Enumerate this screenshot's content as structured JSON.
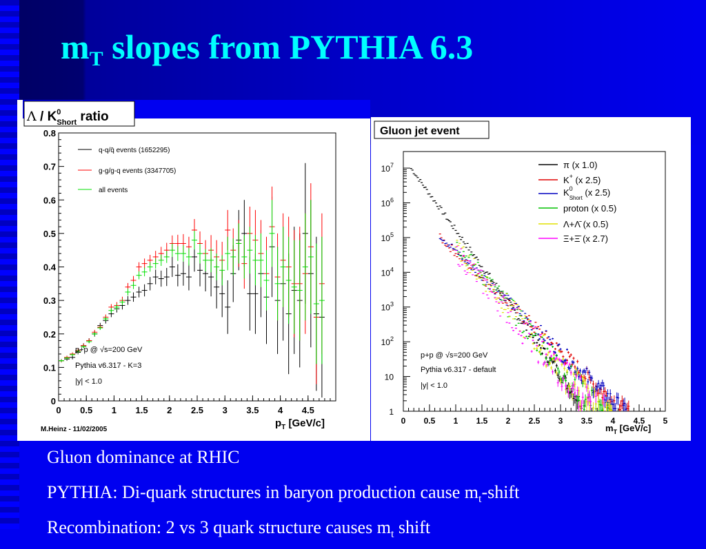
{
  "slide": {
    "title_m": "m",
    "title_sub": "T",
    "title_rest": " slopes from PYTHIA 6.3",
    "bullets": [
      {
        "pre": "Gluon dominance at RHIC",
        "sub": "",
        "post": ""
      },
      {
        "pre": "PYTHIA: Di-quark structures in baryon production cause m",
        "sub": "t",
        "post": "-shift"
      },
      {
        "pre": "Recombination: 2 vs 3 quark structure causes m",
        "sub": "t",
        "post": " shift"
      }
    ],
    "colors": {
      "title": "#00ffff",
      "background": "#0000f0",
      "text": "#ffffff"
    }
  },
  "chart_data": [
    {
      "type": "scatter",
      "title": "Λ / K0Short ratio",
      "title_parts": {
        "lambda": "Λ",
        "slash": " / K",
        "sup": "0",
        "sub": "Short",
        "ratio": " ratio"
      },
      "xlabel_main": "p",
      "xlabel_sub": "T",
      "xlabel_unit": " [GeV/c]",
      "xlim": [
        0,
        5
      ],
      "ylim": [
        0,
        0.8
      ],
      "xticks": [
        "0",
        "0.5",
        "1",
        "1.5",
        "2",
        "2.5",
        "3",
        "3.5",
        "4",
        "4.5"
      ],
      "yticks": [
        "0",
        "0.1",
        "0.2",
        "0.3",
        "0.4",
        "0.5",
        "0.6",
        "0.7",
        "0.8"
      ],
      "legend": [
        "q-q/q̄ events (1652295)",
        "g-g/g-q events (3347705)",
        "all events"
      ],
      "annotations": [
        "p+p @ √s=200 GeV",
        "Pythia v6.317 - K=3",
        "|y| < 1.0"
      ],
      "footer": "M.Heinz - 11/02/2005",
      "series": [
        {
          "name": "q-q/q̄ events (1652295)",
          "color": "#000000",
          "points": [
            [
              0.05,
              0.12,
              0.005
            ],
            [
              0.15,
              0.125,
              0.005
            ],
            [
              0.25,
              0.13,
              0.006
            ],
            [
              0.35,
              0.145,
              0.006
            ],
            [
              0.45,
              0.165,
              0.007
            ],
            [
              0.55,
              0.18,
              0.007
            ],
            [
              0.65,
              0.2,
              0.008
            ],
            [
              0.75,
              0.225,
              0.008
            ],
            [
              0.85,
              0.24,
              0.009
            ],
            [
              0.95,
              0.26,
              0.01
            ],
            [
              1.05,
              0.275,
              0.011
            ],
            [
              1.15,
              0.285,
              0.012
            ],
            [
              1.25,
              0.3,
              0.013
            ],
            [
              1.35,
              0.31,
              0.014
            ],
            [
              1.45,
              0.325,
              0.016
            ],
            [
              1.55,
              0.33,
              0.018
            ],
            [
              1.65,
              0.35,
              0.02
            ],
            [
              1.75,
              0.37,
              0.022
            ],
            [
              1.85,
              0.365,
              0.024
            ],
            [
              1.95,
              0.37,
              0.027
            ],
            [
              2.05,
              0.4,
              0.03
            ],
            [
              2.15,
              0.375,
              0.033
            ],
            [
              2.25,
              0.38,
              0.036
            ],
            [
              2.35,
              0.37,
              0.04
            ],
            [
              2.45,
              0.43,
              0.044
            ],
            [
              2.55,
              0.39,
              0.048
            ],
            [
              2.65,
              0.38,
              0.053
            ],
            [
              2.75,
              0.37,
              0.058
            ],
            [
              2.85,
              0.34,
              0.064
            ],
            [
              2.95,
              0.32,
              0.07
            ],
            [
              3.05,
              0.28,
              0.08
            ],
            [
              3.15,
              0.38,
              0.085
            ],
            [
              3.25,
              0.48,
              0.09
            ],
            [
              3.35,
              0.5,
              0.1
            ],
            [
              3.45,
              0.32,
              0.11
            ],
            [
              3.55,
              0.32,
              0.12
            ],
            [
              3.65,
              0.38,
              0.13
            ],
            [
              3.75,
              0.31,
              0.14
            ],
            [
              3.85,
              0.46,
              0.15
            ],
            [
              3.95,
              0.3,
              0.16
            ],
            [
              4.05,
              0.35,
              0.17
            ],
            [
              4.15,
              0.26,
              0.18
            ],
            [
              4.25,
              0.33,
              0.19
            ],
            [
              4.35,
              0.3,
              0.2
            ],
            [
              4.45,
              0.5,
              0.21
            ],
            [
              4.55,
              0.38,
              0.22
            ],
            [
              4.65,
              0.26,
              0.23
            ],
            [
              4.75,
              0.25,
              0.24
            ]
          ]
        },
        {
          "name": "g-g/g-q events (3347705)",
          "color": "#ff0000",
          "points": [
            [
              0.05,
              0.12,
              0.005
            ],
            [
              0.15,
              0.13,
              0.005
            ],
            [
              0.25,
              0.14,
              0.005
            ],
            [
              0.35,
              0.15,
              0.006
            ],
            [
              0.45,
              0.165,
              0.006
            ],
            [
              0.55,
              0.18,
              0.006
            ],
            [
              0.65,
              0.205,
              0.007
            ],
            [
              0.75,
              0.22,
              0.007
            ],
            [
              0.85,
              0.25,
              0.008
            ],
            [
              0.95,
              0.28,
              0.009
            ],
            [
              1.05,
              0.285,
              0.01
            ],
            [
              1.15,
              0.3,
              0.011
            ],
            [
              1.25,
              0.34,
              0.012
            ],
            [
              1.35,
              0.36,
              0.013
            ],
            [
              1.45,
              0.4,
              0.014
            ],
            [
              1.55,
              0.41,
              0.015
            ],
            [
              1.65,
              0.42,
              0.016
            ],
            [
              1.75,
              0.43,
              0.018
            ],
            [
              1.85,
              0.44,
              0.02
            ],
            [
              1.95,
              0.45,
              0.022
            ],
            [
              2.05,
              0.47,
              0.024
            ],
            [
              2.15,
              0.47,
              0.026
            ],
            [
              2.25,
              0.47,
              0.028
            ],
            [
              2.35,
              0.46,
              0.03
            ],
            [
              2.45,
              0.51,
              0.033
            ],
            [
              2.55,
              0.47,
              0.036
            ],
            [
              2.65,
              0.44,
              0.04
            ],
            [
              2.75,
              0.45,
              0.045
            ],
            [
              2.85,
              0.43,
              0.05
            ],
            [
              2.95,
              0.42,
              0.055
            ],
            [
              3.05,
              0.51,
              0.06
            ],
            [
              3.15,
              0.45,
              0.065
            ],
            [
              3.25,
              0.47,
              0.07
            ],
            [
              3.35,
              0.41,
              0.075
            ],
            [
              3.45,
              0.5,
              0.08
            ],
            [
              3.55,
              0.48,
              0.09
            ],
            [
              3.65,
              0.44,
              0.1
            ],
            [
              3.75,
              0.38,
              0.11
            ],
            [
              3.85,
              0.52,
              0.12
            ],
            [
              3.95,
              0.37,
              0.13
            ],
            [
              4.05,
              0.42,
              0.14
            ],
            [
              4.15,
              0.4,
              0.15
            ],
            [
              4.25,
              0.35,
              0.16
            ],
            [
              4.35,
              0.35,
              0.17
            ],
            [
              4.45,
              0.38,
              0.18
            ],
            [
              4.55,
              0.46,
              0.19
            ],
            [
              4.65,
              0.25,
              0.2
            ],
            [
              4.75,
              0.35,
              0.21
            ]
          ]
        },
        {
          "name": "all events",
          "color": "#00e000",
          "points": [
            [
              0.05,
              0.12,
              0.004
            ],
            [
              0.15,
              0.128,
              0.004
            ],
            [
              0.25,
              0.138,
              0.004
            ],
            [
              0.35,
              0.148,
              0.005
            ],
            [
              0.45,
              0.162,
              0.005
            ],
            [
              0.55,
              0.177,
              0.005
            ],
            [
              0.65,
              0.2,
              0.006
            ],
            [
              0.75,
              0.218,
              0.006
            ],
            [
              0.85,
              0.245,
              0.007
            ],
            [
              0.95,
              0.27,
              0.008
            ],
            [
              1.05,
              0.28,
              0.009
            ],
            [
              1.15,
              0.295,
              0.009
            ],
            [
              1.25,
              0.325,
              0.01
            ],
            [
              1.35,
              0.345,
              0.011
            ],
            [
              1.45,
              0.375,
              0.012
            ],
            [
              1.55,
              0.385,
              0.013
            ],
            [
              1.65,
              0.4,
              0.014
            ],
            [
              1.75,
              0.41,
              0.015
            ],
            [
              1.85,
              0.42,
              0.017
            ],
            [
              1.95,
              0.43,
              0.018
            ],
            [
              2.05,
              0.45,
              0.02
            ],
            [
              2.15,
              0.44,
              0.022
            ],
            [
              2.25,
              0.44,
              0.024
            ],
            [
              2.35,
              0.43,
              0.026
            ],
            [
              2.45,
              0.48,
              0.028
            ],
            [
              2.55,
              0.44,
              0.03
            ],
            [
              2.65,
              0.42,
              0.033
            ],
            [
              2.75,
              0.42,
              0.036
            ],
            [
              2.85,
              0.4,
              0.04
            ],
            [
              2.95,
              0.39,
              0.045
            ],
            [
              3.05,
              0.44,
              0.05
            ],
            [
              3.15,
              0.43,
              0.055
            ],
            [
              3.25,
              0.47,
              0.06
            ],
            [
              3.35,
              0.43,
              0.065
            ],
            [
              3.45,
              0.45,
              0.07
            ],
            [
              3.55,
              0.42,
              0.075
            ],
            [
              3.65,
              0.42,
              0.08
            ],
            [
              3.75,
              0.36,
              0.09
            ],
            [
              3.85,
              0.5,
              0.1
            ],
            [
              3.95,
              0.35,
              0.11
            ],
            [
              4.05,
              0.4,
              0.12
            ],
            [
              4.15,
              0.36,
              0.13
            ],
            [
              4.25,
              0.34,
              0.14
            ],
            [
              4.35,
              0.33,
              0.15
            ],
            [
              4.45,
              0.4,
              0.16
            ],
            [
              4.55,
              0.43,
              0.17
            ],
            [
              4.65,
              0.29,
              0.18
            ],
            [
              4.75,
              0.3,
              0.19
            ]
          ]
        }
      ]
    },
    {
      "type": "scatter",
      "title": "Gluon jet event",
      "xlabel_main": "m",
      "xlabel_sub": "T",
      "xlabel_unit": " [GeV/c]",
      "xlim": [
        0,
        5
      ],
      "yscale": "log",
      "ylim": [
        1,
        30000000
      ],
      "xticks": [
        "0",
        "0.5",
        "1",
        "1.5",
        "2",
        "2.5",
        "3",
        "3.5",
        "4",
        "4.5",
        "5"
      ],
      "yticks": [
        {
          "base": "1",
          "exp": ""
        },
        {
          "base": "10",
          "exp": ""
        },
        {
          "base": "10",
          "exp": "2"
        },
        {
          "base": "10",
          "exp": "3"
        },
        {
          "base": "10",
          "exp": "4"
        },
        {
          "base": "10",
          "exp": "5"
        },
        {
          "base": "10",
          "exp": "6"
        },
        {
          "base": "10",
          "exp": "7"
        }
      ],
      "annotations": [
        "p+p @ √s=200 GeV",
        "Pythia v6.317 - default",
        "|y| < 1.0"
      ],
      "series": [
        {
          "name": "π  (x 1.0)",
          "label_main": "π  (x 1.0)",
          "color": "#000000",
          "y0": 20000000,
          "k": 4.8,
          "xstart": 0.15,
          "xend": 5.0,
          "noise": 0.1
        },
        {
          "name": "K+ (x 2.5)",
          "label_main": "K",
          "label_sup": "+",
          "label_rest": " (x 2.5)",
          "color": "#e00000",
          "y0": 1000000,
          "k": 3.3,
          "xstart": 0.7,
          "xend": 5.0,
          "noise": 0.14
        },
        {
          "name": "K0Short (x 2.5)",
          "label_main": "K",
          "label_sup": "0",
          "label_sub": "Short",
          "label_rest": "  (x 2.5)",
          "color": "#0000c0",
          "y0": 1200000,
          "k": 3.35,
          "xstart": 0.7,
          "xend": 5.0,
          "noise": 0.14
        },
        {
          "name": "proton (x 0.5)",
          "label_main": "proton (x 0.5)",
          "color": "#00c000",
          "y0": 4000000,
          "k": 4.1,
          "xstart": 1.0,
          "xend": 5.0,
          "noise": 0.25
        },
        {
          "name": "Λ+Λ̄  (x 0.5)",
          "label_main": "Λ+Λ̄  (x 0.5)",
          "color": "#e0e000",
          "y0": 3000000,
          "k": 4.0,
          "xstart": 1.0,
          "xend": 5.0,
          "noise": 0.28
        },
        {
          "name": "Ξ+Ξ̄  (x 2.7)",
          "label_main": "Ξ+Ξ̄  (x 2.7)",
          "color": "#ff00ff",
          "y0": 2000000,
          "k": 3.95,
          "xstart": 1.0,
          "xend": 5.0,
          "noise": 0.32
        }
      ]
    }
  ]
}
